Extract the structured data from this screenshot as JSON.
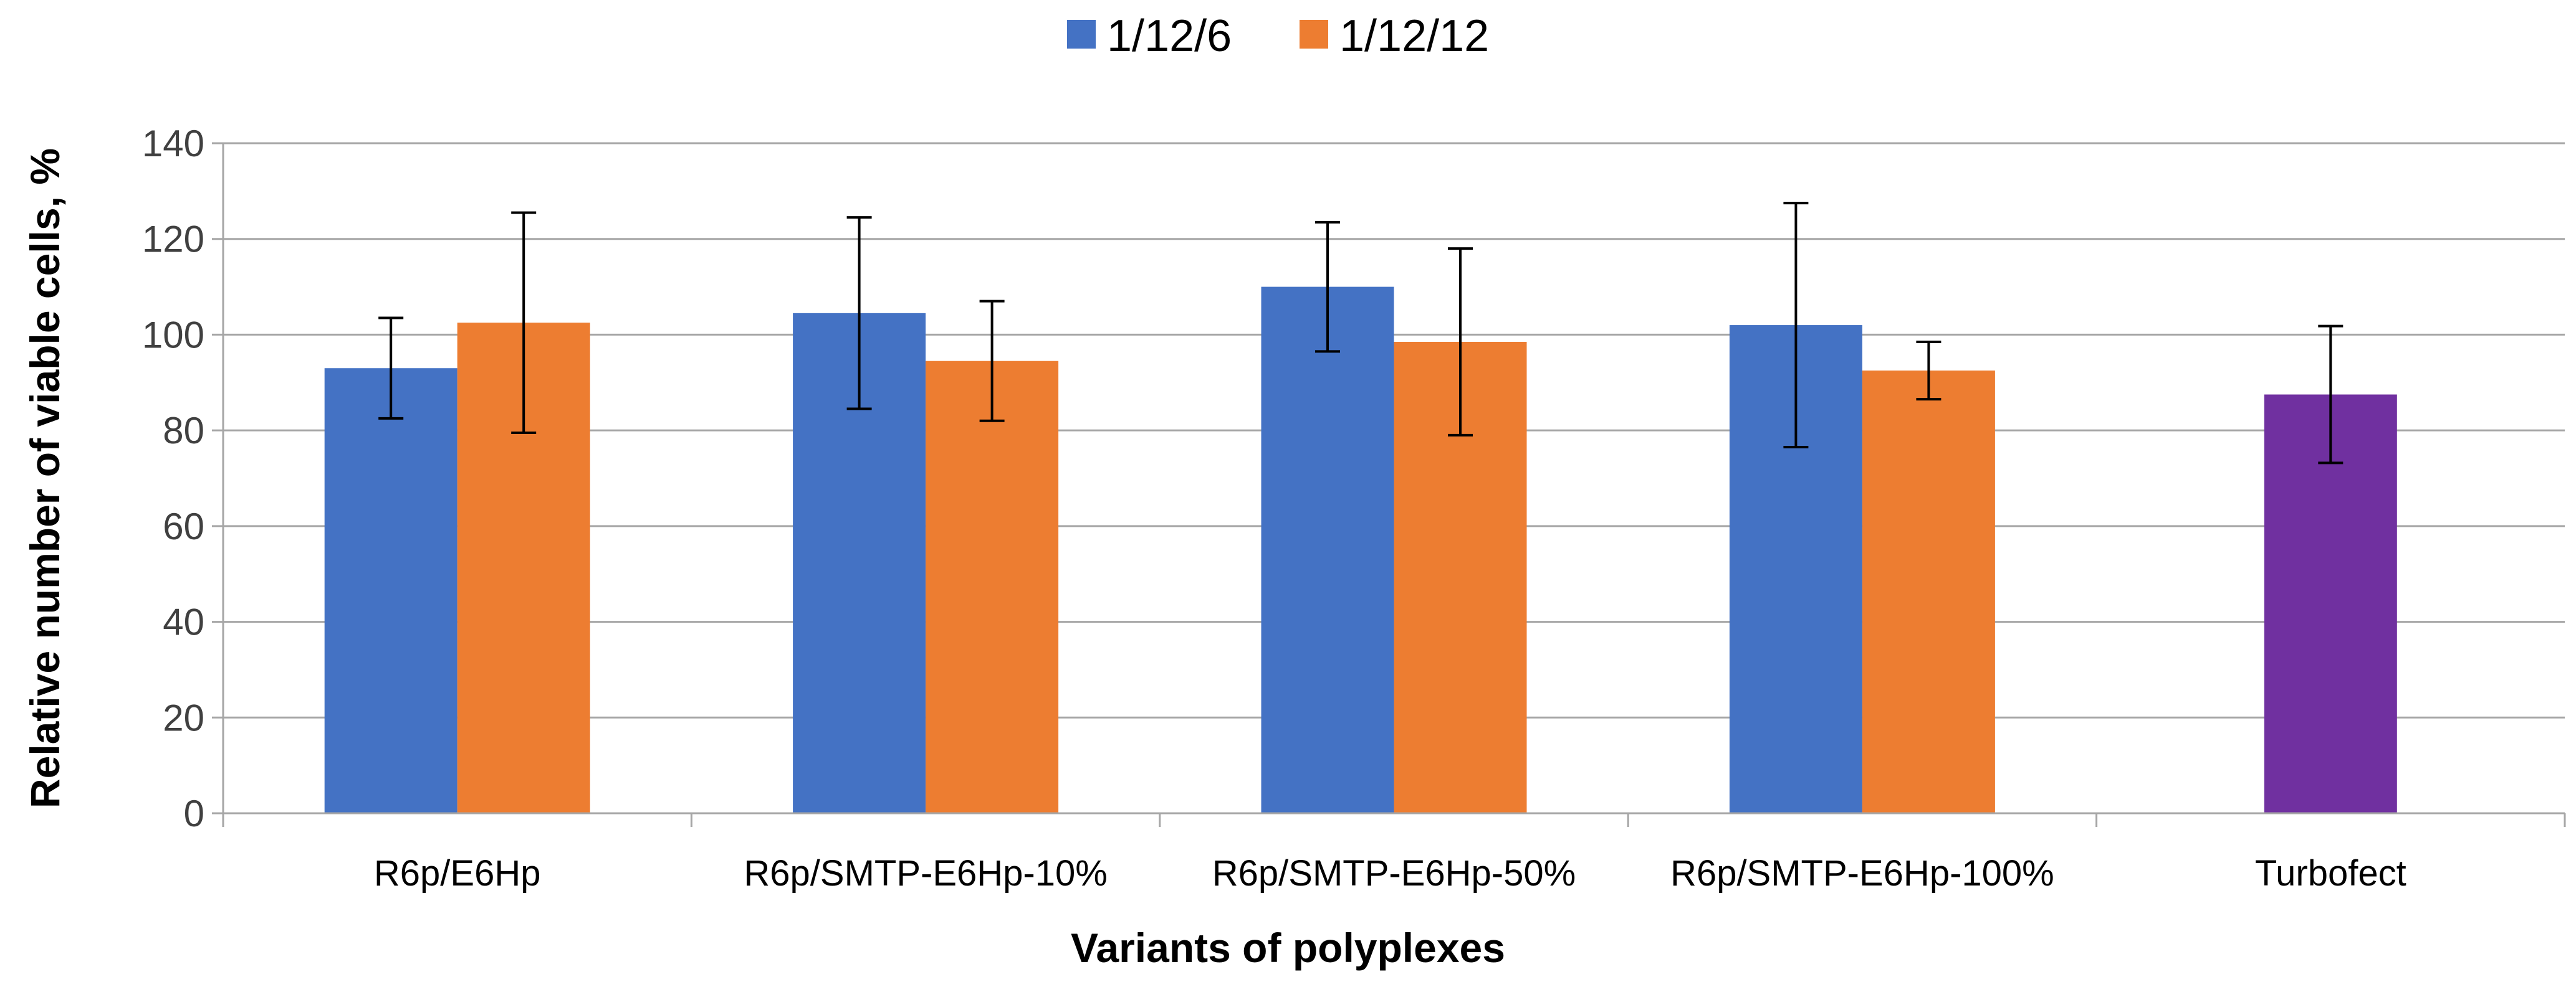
{
  "chart_data": {
    "type": "bar",
    "title": "",
    "xlabel": "Variants of polyplexes",
    "ylabel": "Relative number of viable cells, %",
    "ylim": [
      0,
      140
    ],
    "yticks": [
      0,
      20,
      40,
      60,
      80,
      100,
      120,
      140
    ],
    "grid": true,
    "legend_position": "top-center",
    "categories": [
      "R6p/E6Hp",
      "R6p/SMTP-E6Hp-10%",
      "R6p/SMTP-E6Hp-50%",
      "R6p/SMTP-E6Hp-100%",
      "Turbofect"
    ],
    "series": [
      {
        "name": "1/12/6",
        "color": "#4472C4",
        "values": [
          93,
          104.5,
          110,
          102,
          87.5
        ],
        "errors": [
          10.5,
          20,
          13.5,
          25.5,
          14.3
        ]
      },
      {
        "name": "1/12/12",
        "color": "#ED7D31",
        "values": [
          102.5,
          94.5,
          98.5,
          92.5,
          null
        ],
        "errors": [
          23,
          12.5,
          19.5,
          6,
          null
        ]
      }
    ],
    "special_bar": {
      "category": "Turbofect",
      "color": "#7030A0",
      "value": 87.5,
      "error": 14.3
    },
    "axis_color": "#A6A6A6",
    "grid_color": "#A6A6A6",
    "errorbar_color": "#000000"
  }
}
